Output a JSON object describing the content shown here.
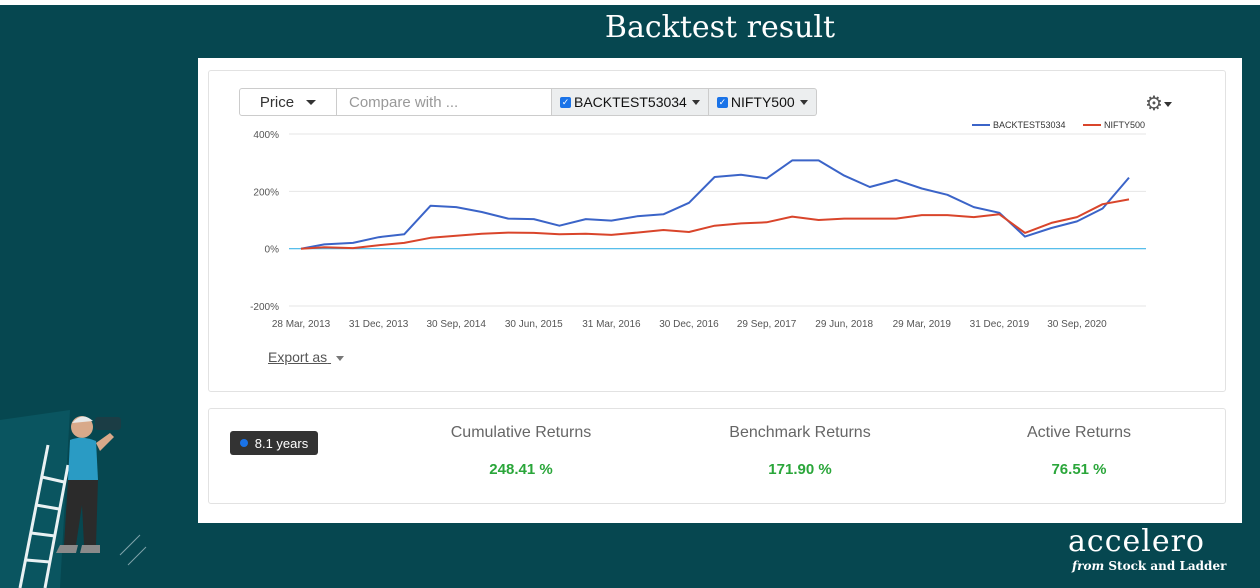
{
  "slide": {
    "title": "Backtest result",
    "logo_word": "accelero",
    "logo_from": "from",
    "logo_company": "Stock and Ladder"
  },
  "toolbar": {
    "price_label": "Price",
    "compare_placeholder": "Compare with ...",
    "series_buttons": [
      "BACKTEST53034",
      "NIFTY500"
    ]
  },
  "chart_data": {
    "type": "line",
    "x": [
      "28 Mar, 2013",
      "31 Dec, 2013",
      "30 Sep, 2014",
      "30 Jun, 2015",
      "31 Mar, 2016",
      "30 Dec, 2016",
      "29 Sep, 2017",
      "29 Jun, 2018",
      "29 Mar, 2019",
      "31 Dec, 2019",
      "30 Sep, 2020"
    ],
    "y_ticks": [
      "400%",
      "200%",
      "0%",
      "-200%"
    ],
    "ylim": [
      -200,
      400
    ],
    "grid": true,
    "legend_position": "top-right",
    "series": [
      {
        "name": "BACKTEST53034",
        "color": "#3b64c8",
        "points": [
          [
            0,
            0
          ],
          [
            0.3,
            15
          ],
          [
            0.67,
            20
          ],
          [
            1,
            40
          ],
          [
            1.33,
            50
          ],
          [
            1.67,
            150
          ],
          [
            2,
            145
          ],
          [
            2.33,
            128
          ],
          [
            2.67,
            105
          ],
          [
            3,
            103
          ],
          [
            3.33,
            80
          ],
          [
            3.67,
            103
          ],
          [
            4,
            98
          ],
          [
            4.33,
            113
          ],
          [
            4.67,
            120
          ],
          [
            5,
            160
          ],
          [
            5.33,
            250
          ],
          [
            5.67,
            258
          ],
          [
            6,
            245
          ],
          [
            6.33,
            308
          ],
          [
            6.67,
            308
          ],
          [
            7,
            255
          ],
          [
            7.33,
            215
          ],
          [
            7.67,
            240
          ],
          [
            8,
            210
          ],
          [
            8.33,
            188
          ],
          [
            8.67,
            145
          ],
          [
            9,
            125
          ],
          [
            9.33,
            42
          ],
          [
            9.67,
            72
          ],
          [
            10,
            95
          ],
          [
            10.33,
            140
          ],
          [
            10.67,
            248
          ]
        ]
      },
      {
        "name": "NIFTY500",
        "color": "#d9452b",
        "points": [
          [
            0,
            0
          ],
          [
            0.3,
            5
          ],
          [
            0.67,
            2
          ],
          [
            1,
            12
          ],
          [
            1.33,
            20
          ],
          [
            1.67,
            38
          ],
          [
            2,
            45
          ],
          [
            2.33,
            52
          ],
          [
            2.67,
            56
          ],
          [
            3,
            55
          ],
          [
            3.33,
            50
          ],
          [
            3.67,
            52
          ],
          [
            4,
            48
          ],
          [
            4.33,
            56
          ],
          [
            4.67,
            65
          ],
          [
            5,
            58
          ],
          [
            5.33,
            80
          ],
          [
            5.67,
            88
          ],
          [
            6,
            92
          ],
          [
            6.33,
            112
          ],
          [
            6.67,
            100
          ],
          [
            7,
            105
          ],
          [
            7.33,
            105
          ],
          [
            7.67,
            105
          ],
          [
            8,
            117
          ],
          [
            8.33,
            117
          ],
          [
            8.67,
            110
          ],
          [
            9,
            120
          ],
          [
            9.33,
            55
          ],
          [
            9.67,
            90
          ],
          [
            10,
            110
          ],
          [
            10.33,
            155
          ],
          [
            10.67,
            172
          ]
        ]
      }
    ]
  },
  "export_label": "Export as",
  "stats": {
    "period": "8.1 years",
    "cumulative_label": "Cumulative Returns",
    "cumulative_value": "248.41 %",
    "benchmark_label": "Benchmark Returns",
    "benchmark_value": "171.90 %",
    "active_label": "Active Returns",
    "active_value": "76.51 %"
  }
}
